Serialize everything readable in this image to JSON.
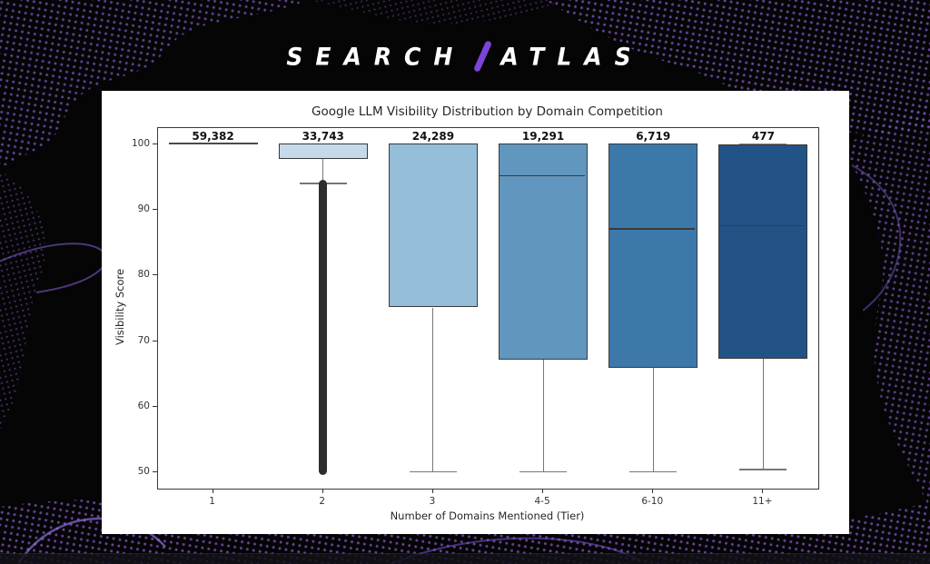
{
  "logo": {
    "left": "SEARCH",
    "right": "ATLAS",
    "slash_color": "#7a45d8"
  },
  "colors": {
    "background": "#050505",
    "pattern_purple": "#6f48a8",
    "panel": "#ffffff",
    "box_border": "#3a3a3a",
    "whisker": "#777777",
    "outlier_column": "#2e2e2e",
    "text": "#262626"
  },
  "chart_data": {
    "type": "box",
    "title": "Google LLM Visibility Distribution by Domain Competition",
    "xlabel": "Number of Domains Mentioned (Tier)",
    "ylabel": "Visibility Score",
    "ylim": [
      47.5,
      102.5
    ],
    "y_ticks": [
      50,
      60,
      70,
      80,
      90,
      100
    ],
    "grid": false,
    "legend": null,
    "categories": [
      "1",
      "2",
      "3",
      "4-5",
      "6-10",
      "11+"
    ],
    "counts": [
      "59,382",
      "33,743",
      "24,289",
      "19,291",
      "6,719",
      "477"
    ],
    "boxes": [
      {
        "tier": "1",
        "q1": 100,
        "median": 100,
        "q3": 100,
        "whisker_low": 100,
        "whisker_high": 100,
        "flat": true,
        "color": "#dce9f4"
      },
      {
        "tier": "2",
        "q1": 97.7,
        "median": 100,
        "q3": 100,
        "whisker_low": 94,
        "whisker_high": 100,
        "color": "#c5d9ea",
        "outliers": {
          "from": 50,
          "to": 94
        }
      },
      {
        "tier": "3",
        "q1": 75,
        "median": 100,
        "q3": 100,
        "whisker_low": 50,
        "whisker_high": 100,
        "color": "#95bed9"
      },
      {
        "tier": "4-5",
        "q1": 67,
        "median": 95.2,
        "q3": 100,
        "whisker_low": 50,
        "whisker_high": 100,
        "color": "#6196be"
      },
      {
        "tier": "6-10",
        "q1": 65.8,
        "median": 87.1,
        "q3": 100,
        "whisker_low": 50,
        "whisker_high": 100,
        "color": "#3d78ab"
      },
      {
        "tier": "11+",
        "q1": 67.2,
        "median": 87.6,
        "q3": 99.8,
        "whisker_low": 50.4,
        "whisker_high": 100,
        "color": "#235287"
      }
    ]
  }
}
